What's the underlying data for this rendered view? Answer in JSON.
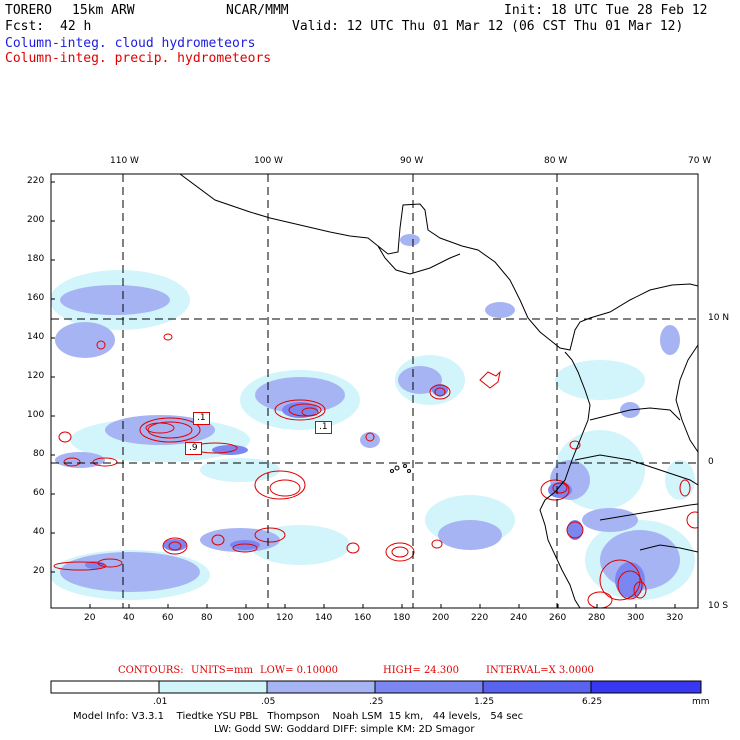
{
  "header": {
    "model_name": "TORERO",
    "model_res": "15km ARW",
    "institution": "NCAR/MMM",
    "init_time": "Init: 18 UTC Tue 28 Feb 12",
    "fcst_label": "Fcst:",
    "fcst_hours": "42 h",
    "valid_time": "Valid: 12 UTC Thu 01 Mar 12 (06 CST Thu 01 Mar 12)",
    "field_cloud": "Column-integ. cloud hydrometeors",
    "field_precip": "Column-integ. precip. hydrometeors"
  },
  "map": {
    "top_labels": [
      "110 W",
      "100 W",
      "90 W",
      "80 W",
      "70 W"
    ],
    "right_labels": [
      "10 N",
      "0",
      "10 S"
    ],
    "left_ticks": [
      "220",
      "200",
      "180",
      "160",
      "140",
      "120",
      "100",
      "80",
      "60",
      "40",
      "20"
    ],
    "bottom_ticks": [
      "20",
      "40",
      "60",
      "80",
      "100",
      "120",
      "140",
      "160",
      "180",
      "200",
      "220",
      "240",
      "260",
      "280",
      "300",
      "320"
    ],
    "box_labels": [
      ".1",
      ".1",
      ".9"
    ],
    "colors": {
      "cloud_light": "#d2f4fb",
      "cloud_mid": "#a7b4f4",
      "cloud_strong": "#7b86f0",
      "cloud_deep": "#4a4ef0",
      "precip_contour": "#e00000",
      "land_outline": "#000000"
    }
  },
  "contours_line": {
    "label": "CONTOURS:",
    "units": "UNITS=mm",
    "low": "LOW= 0.10000",
    "high": "HIGH= 24.300",
    "interval": "INTERVAL=X 3.0000"
  },
  "colorbar": {
    "labels": [
      ".01",
      ".05",
      ".25",
      "1.25",
      "6.25"
    ],
    "unit": "mm",
    "colors": [
      "#ffffff",
      "#d2f4fb",
      "#c3ccf8",
      "#a7b4f4",
      "#7b86f0",
      "#5a62f0",
      "#3838f0"
    ]
  },
  "footer": {
    "line1": "Model Info: V3.3.1    Tiedtke YSU PBL   Thompson    Noah LSM  15 km,   44 levels,   54 sec",
    "line2": "LW: Godd SW: Goddard DIFF: simple KM: 2D Smagor"
  }
}
